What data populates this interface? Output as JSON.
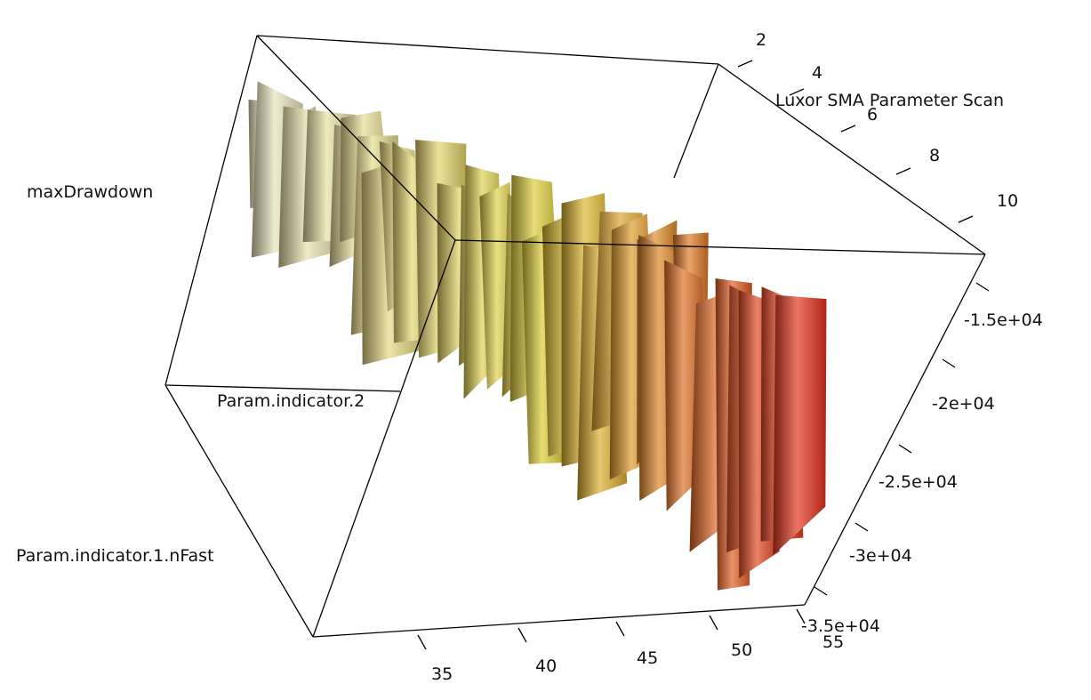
{
  "chart_data": {
    "type": "surface",
    "title": "Luxor SMA Parameter Scan",
    "xlabel": "Param.indicator.1.nFast",
    "ylabel": "Param.indicator.2",
    "zlabel": "maxDrawdown",
    "fast_ticks": [
      "2",
      "4",
      "6",
      "8",
      "10"
    ],
    "slow_ticks": [
      "35",
      "40",
      "45",
      "50",
      "55"
    ],
    "z_ticks": [
      "-1.5e+04",
      "-2e+04",
      "-2.5e+04",
      "-3e+04",
      "-3.5e+04"
    ],
    "fast_range": [
      1,
      10
    ],
    "slow_range": [
      30,
      55
    ],
    "z_range": [
      -36000,
      -13000
    ],
    "grid": false,
    "colors": {
      "high": "#e8e4c8",
      "mid": "#d9c92e",
      "low": "#e02a1a",
      "shadow": "#1a1008"
    }
  }
}
